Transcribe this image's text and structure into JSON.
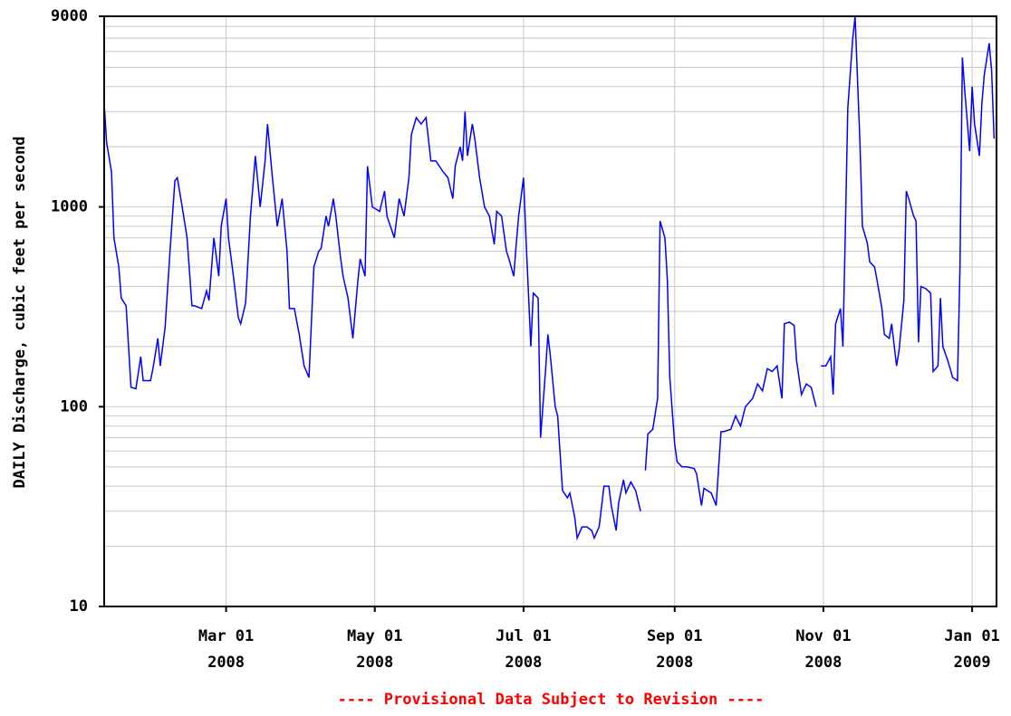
{
  "chart_data": {
    "type": "line",
    "ylabel": "DAILY Discharge, cubic feet per second",
    "footnote": "---- Provisional Data Subject to Revision ----",
    "log_y": true,
    "grid": true,
    "color": "#0000ff",
    "ylim": [
      10,
      9000
    ],
    "yticks": [
      10,
      100,
      1000,
      9000
    ],
    "yminorgrid": [
      20,
      30,
      40,
      50,
      60,
      70,
      80,
      90,
      200,
      300,
      400,
      500,
      600,
      700,
      800,
      900,
      2000,
      3000,
      4000,
      5000,
      6000,
      7000,
      8000
    ],
    "xlim": [
      "2008-01-11",
      "2009-01-11"
    ],
    "xticks": [
      {
        "value": "2008-03-01",
        "label": [
          "Mar 01",
          "2008"
        ]
      },
      {
        "value": "2008-05-01",
        "label": [
          "May 01",
          "2008"
        ]
      },
      {
        "value": "2008-07-01",
        "label": [
          "Jul 01",
          "2008"
        ]
      },
      {
        "value": "2008-09-01",
        "label": [
          "Sep 01",
          "2008"
        ]
      },
      {
        "value": "2008-11-01",
        "label": [
          "Nov 01",
          "2008"
        ]
      },
      {
        "value": "2009-01-01",
        "label": [
          "Jan 01",
          "2009"
        ]
      }
    ],
    "x": [
      "2008-01-11",
      "2008-01-12",
      "2008-01-14",
      "2008-01-15",
      "2008-01-17",
      "2008-01-18",
      "2008-01-20",
      "2008-01-21",
      "2008-01-22",
      "2008-01-24",
      "2008-01-26",
      "2008-01-27",
      "2008-01-30",
      "2008-01-31",
      "2008-02-02",
      "2008-02-03",
      "2008-02-05",
      "2008-02-07",
      "2008-02-09",
      "2008-02-10",
      "2008-02-12",
      "2008-02-14",
      "2008-02-16",
      "2008-02-17",
      "2008-02-20",
      "2008-02-22",
      "2008-02-23",
      "2008-02-25",
      "2008-02-27",
      "2008-02-28",
      "2008-03-01",
      "2008-03-02",
      "2008-03-04",
      "2008-03-06",
      "2008-03-07",
      "2008-03-09",
      "2008-03-11",
      "2008-03-13",
      "2008-03-15",
      "2008-03-17",
      "2008-03-18",
      "2008-03-20",
      "2008-03-22",
      "2008-03-24",
      "2008-03-26",
      "2008-03-27",
      "2008-03-29",
      "2008-03-31",
      "2008-04-02",
      "2008-04-04",
      "2008-04-06",
      "2008-04-08",
      "2008-04-09",
      "2008-04-11",
      "2008-04-12",
      "2008-04-14",
      "2008-04-15",
      "2008-04-17",
      "2008-04-18",
      "2008-04-20",
      "2008-04-22",
      "2008-04-24",
      "2008-04-25",
      "2008-04-27",
      "2008-04-28",
      "2008-04-30",
      "2008-05-03",
      "2008-05-05",
      "2008-05-06",
      "2008-05-09",
      "2008-05-11",
      "2008-05-13",
      "2008-05-15",
      "2008-05-16",
      "2008-05-18",
      "2008-05-20",
      "2008-05-22",
      "2008-05-24",
      "2008-05-26",
      "2008-05-29",
      "2008-05-31",
      "2008-06-02",
      "2008-06-03",
      "2008-06-05",
      "2008-06-06",
      "2008-06-07",
      "2008-06-08",
      "2008-06-10",
      "2008-06-11",
      "2008-06-13",
      "2008-06-15",
      "2008-06-17",
      "2008-06-19",
      "2008-06-20",
      "2008-06-22",
      "2008-06-24",
      "2008-06-25",
      "2008-06-27",
      "2008-06-28",
      "2008-06-29",
      "2008-07-01",
      "2008-07-02",
      "2008-07-04",
      "2008-07-05",
      "2008-07-07",
      "2008-07-08",
      "2008-07-10",
      "2008-07-11",
      "2008-07-12",
      "2008-07-14",
      "2008-07-15",
      "2008-07-17",
      "2008-07-19",
      "2008-07-20",
      "2008-07-22",
      "2008-07-23",
      "2008-07-25",
      "2008-07-27",
      "2008-07-29",
      "2008-07-30",
      "2008-08-01",
      "2008-08-03",
      "2008-08-05",
      "2008-08-06",
      "2008-08-08",
      "2008-08-09",
      "2008-08-11",
      "2008-08-12",
      "2008-08-14",
      "2008-08-16",
      "2008-08-18",
      "2008-08-19",
      "2008-08-20",
      "2008-08-21",
      "2008-08-23",
      "2008-08-25",
      "2008-08-26",
      "2008-08-28",
      "2008-08-29",
      "2008-08-30",
      "2008-09-01",
      "2008-09-02",
      "2008-09-04",
      "2008-09-06",
      "2008-09-09",
      "2008-09-10",
      "2008-09-12",
      "2008-09-13",
      "2008-09-16",
      "2008-09-18",
      "2008-09-20",
      "2008-09-21",
      "2008-09-24",
      "2008-09-26",
      "2008-09-28",
      "2008-09-30",
      "2008-10-03",
      "2008-10-05",
      "2008-10-07",
      "2008-10-09",
      "2008-10-11",
      "2008-10-13",
      "2008-10-15",
      "2008-10-16",
      "2008-10-18",
      "2008-10-20",
      "2008-10-21",
      "2008-10-23",
      "2008-10-25",
      "2008-10-27",
      "2008-10-29",
      "2008-10-30",
      "2008-10-31",
      "2008-11-02",
      "2008-11-04",
      "2008-11-05",
      "2008-11-06",
      "2008-11-08",
      "2008-11-09",
      "2008-11-10",
      "2008-11-11",
      "2008-11-13",
      "2008-11-14",
      "2008-11-15",
      "2008-11-16",
      "2008-11-17",
      "2008-11-19",
      "2008-11-20",
      "2008-11-22",
      "2008-11-23",
      "2008-11-25",
      "2008-11-26",
      "2008-11-28",
      "2008-11-29",
      "2008-12-01",
      "2008-12-02",
      "2008-12-04",
      "2008-12-05",
      "2008-12-06",
      "2008-12-08",
      "2008-12-09",
      "2008-12-10",
      "2008-12-11",
      "2008-12-13",
      "2008-12-15",
      "2008-12-16",
      "2008-12-18",
      "2008-12-19",
      "2008-12-20",
      "2008-12-22",
      "2008-12-23",
      "2008-12-24",
      "2008-12-26",
      "2008-12-27",
      "2008-12-28",
      "2008-12-29",
      "2008-12-31",
      "2009-01-01",
      "2009-01-02",
      "2009-01-04",
      "2009-01-05",
      "2009-01-06",
      "2009-01-08",
      "2009-01-09",
      "2009-01-10"
    ],
    "values": [
      3300,
      2100,
      1500,
      700,
      500,
      350,
      320,
      200,
      125,
      123,
      178,
      135,
      135,
      155,
      220,
      160,
      250,
      600,
      1350,
      1400,
      1000,
      700,
      320,
      320,
      310,
      380,
      340,
      700,
      450,
      800,
      1100,
      700,
      450,
      280,
      260,
      330,
      900,
      1800,
      1000,
      1700,
      2600,
      1400,
      800,
      1100,
      600,
      310,
      310,
      230,
      160,
      140,
      500,
      600,
      620,
      900,
      800,
      1100,
      900,
      550,
      450,
      350,
      220,
      420,
      550,
      450,
      1600,
      1000,
      950,
      1200,
      900,
      700,
      1100,
      900,
      1400,
      2300,
      2800,
      2600,
      2800,
      1700,
      1700,
      1500,
      1400,
      1100,
      1600,
      2000,
      1700,
      3000,
      1800,
      2600,
      2200,
      1400,
      1000,
      900,
      650,
      950,
      900,
      600,
      550,
      450,
      650,
      900,
      1400,
      700,
      200,
      370,
      350,
      70,
      150,
      230,
      180,
      100,
      90,
      38,
      35,
      37,
      28,
      22,
      25,
      25,
      24,
      22,
      25,
      40,
      40,
      32,
      24,
      33,
      43,
      37,
      42,
      38,
      30,
      null,
      48,
      73,
      77,
      110,
      850,
      700,
      430,
      140,
      65,
      53,
      50,
      50,
      49,
      46,
      32,
      39,
      37,
      32,
      75,
      75,
      77,
      90,
      80,
      100,
      110,
      130,
      120,
      155,
      150,
      160,
      110,
      260,
      265,
      255,
      170,
      115,
      130,
      125,
      100,
      null,
      160,
      160,
      178,
      115,
      260,
      310,
      200,
      760,
      3100,
      6900,
      9000,
      4300,
      2080,
      800,
      660,
      530,
      500,
      430,
      310,
      230,
      220,
      260,
      160,
      190,
      340,
      1200,
      1100,
      900,
      850,
      210,
      400,
      390,
      370,
      150,
      160,
      350,
      200,
      170,
      155,
      140,
      135,
      480,
      5600,
      3800,
      1900,
      4000,
      2600,
      1800,
      3300,
      4600,
      6600,
      4800,
      2200
    ]
  }
}
